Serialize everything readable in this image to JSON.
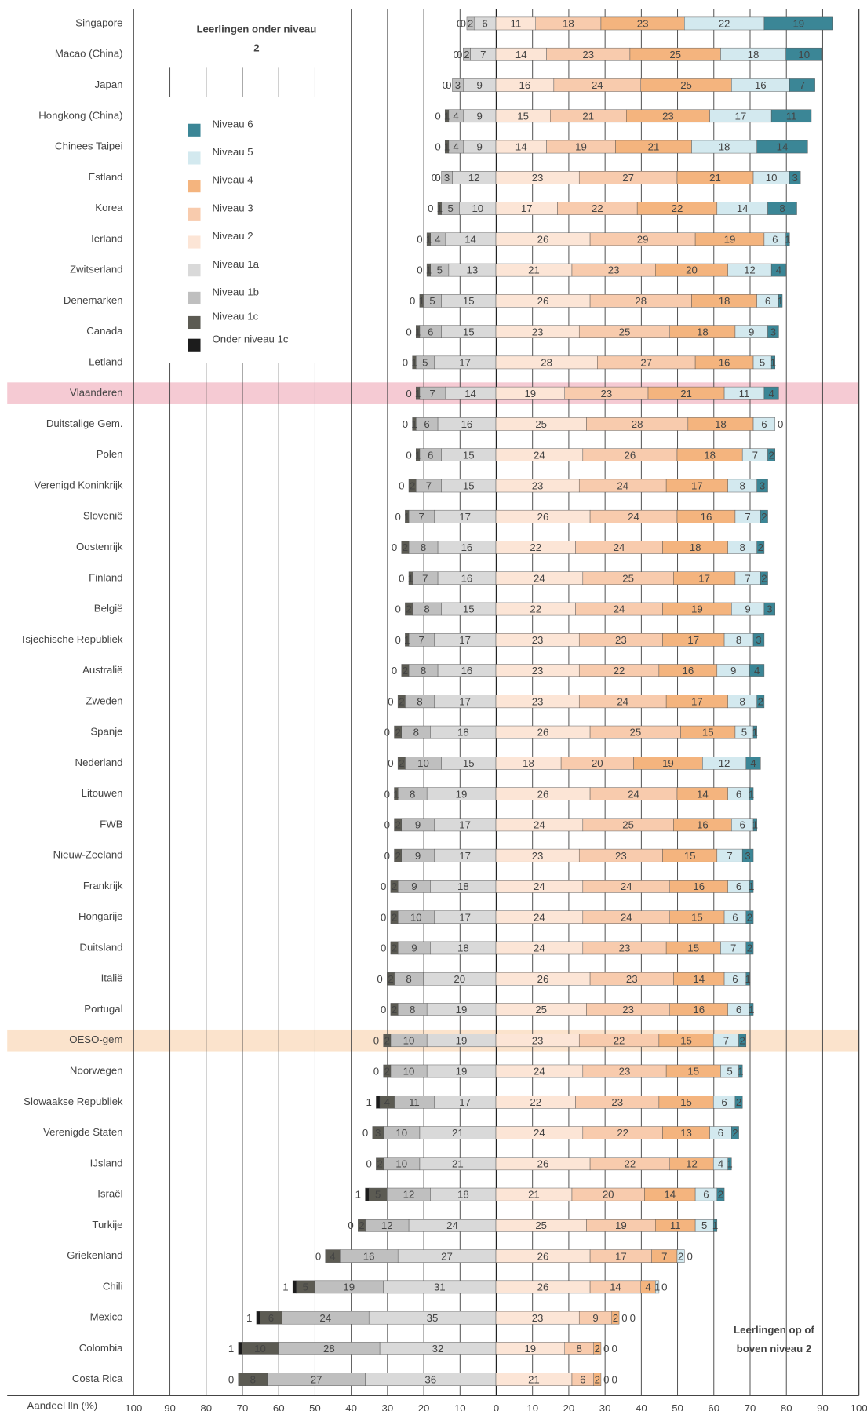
{
  "chart_data": {
    "type": "diverging_bar",
    "categories": [
      "Singapore",
      "Macao (China)",
      "Japan",
      "Hongkong (China)",
      "Chinees Taipei",
      "Estland",
      "Korea",
      "Ierland",
      "Zwitserland",
      "Denemarken",
      "Canada",
      "Letland",
      "Vlaanderen",
      "Duitstalige Gem.",
      "Polen",
      "Verenigd Koninkrijk",
      "Slovenië",
      "Oostenrijk",
      "Finland",
      "België",
      "Tsjechische Republiek",
      "Australië",
      "Zweden",
      "Spanje",
      "Nederland",
      "Litouwen",
      "FWB",
      "Nieuw-Zeeland",
      "Frankrijk",
      "Hongarije",
      "Duitsland",
      "Italië",
      "Portugal",
      "OESO-gem",
      "Noorwegen",
      "Slowaakse Republiek",
      "Verenigde Staten",
      "IJsland",
      "Israël",
      "Turkije",
      "Griekenland",
      "Chili",
      "Mexico",
      "Colombia",
      "Costa Rica"
    ],
    "series": [
      {
        "name": "Niveau 6",
        "color": "#3b8696",
        "side": "above",
        "values": [
          19,
          10,
          7,
          11,
          14,
          3,
          8,
          1,
          4,
          1,
          3,
          1,
          4,
          0,
          2,
          3,
          2,
          2,
          2,
          3,
          3,
          4,
          2,
          1,
          4,
          1,
          1,
          3,
          1,
          2,
          2,
          1,
          1,
          2,
          1,
          2,
          2,
          1,
          2,
          1,
          0,
          0,
          0,
          0,
          0
        ]
      },
      {
        "name": "Niveau 5",
        "color": "#d3e9ef",
        "side": "above",
        "values": [
          22,
          18,
          16,
          17,
          18,
          10,
          14,
          6,
          12,
          6,
          9,
          5,
          11,
          6,
          7,
          8,
          7,
          8,
          7,
          9,
          8,
          9,
          8,
          5,
          12,
          6,
          6,
          7,
          6,
          6,
          7,
          6,
          6,
          7,
          5,
          6,
          6,
          4,
          6,
          5,
          2,
          1,
          0,
          0,
          0
        ]
      },
      {
        "name": "Niveau 4",
        "color": "#f4b47e",
        "side": "above",
        "values": [
          23,
          25,
          25,
          23,
          21,
          21,
          22,
          19,
          20,
          18,
          18,
          16,
          21,
          18,
          18,
          17,
          16,
          18,
          17,
          19,
          17,
          16,
          17,
          15,
          19,
          14,
          16,
          15,
          16,
          15,
          15,
          14,
          16,
          15,
          15,
          15,
          13,
          12,
          14,
          11,
          7,
          4,
          2,
          2,
          2
        ]
      },
      {
        "name": "Niveau 3",
        "color": "#f8cbad",
        "side": "above",
        "values": [
          18,
          23,
          24,
          21,
          19,
          27,
          22,
          29,
          23,
          28,
          25,
          27,
          23,
          28,
          26,
          24,
          24,
          24,
          25,
          24,
          23,
          22,
          24,
          25,
          20,
          24,
          25,
          23,
          24,
          24,
          23,
          23,
          23,
          22,
          23,
          23,
          22,
          22,
          20,
          19,
          17,
          14,
          9,
          8,
          6
        ]
      },
      {
        "name": "Niveau 2",
        "color": "#fce5d6",
        "side": "above",
        "values": [
          11,
          14,
          16,
          15,
          14,
          23,
          17,
          26,
          21,
          26,
          23,
          28,
          19,
          25,
          24,
          23,
          26,
          22,
          24,
          22,
          23,
          23,
          23,
          26,
          18,
          26,
          24,
          23,
          24,
          24,
          24,
          26,
          25,
          23,
          24,
          22,
          24,
          26,
          21,
          25,
          26,
          26,
          23,
          19,
          21
        ]
      },
      {
        "name": "Niveau 1a",
        "color": "#d9d9d9",
        "side": "below",
        "values": [
          6,
          7,
          9,
          9,
          9,
          12,
          10,
          14,
          13,
          15,
          15,
          17,
          14,
          16,
          15,
          15,
          17,
          16,
          16,
          15,
          17,
          16,
          17,
          18,
          15,
          19,
          17,
          17,
          18,
          17,
          18,
          20,
          19,
          19,
          19,
          17,
          21,
          21,
          18,
          24,
          27,
          31,
          35,
          32,
          36
        ]
      },
      {
        "name": "Niveau 1b",
        "color": "#bfbfbf",
        "side": "below",
        "values": [
          2,
          2,
          3,
          4,
          4,
          3,
          5,
          4,
          5,
          5,
          6,
          5,
          7,
          6,
          6,
          7,
          7,
          8,
          7,
          8,
          7,
          8,
          8,
          8,
          10,
          8,
          9,
          9,
          9,
          10,
          9,
          8,
          8,
          10,
          10,
          11,
          10,
          10,
          12,
          12,
          16,
          19,
          24,
          28,
          27
        ]
      },
      {
        "name": "Niveau 1c",
        "color": "#5c5b53",
        "side": "below",
        "values": [
          0,
          0,
          0,
          1,
          1,
          0,
          1,
          1,
          1,
          1,
          1,
          1,
          1,
          1,
          1,
          2,
          1,
          2,
          1,
          2,
          1,
          2,
          2,
          2,
          2,
          1,
          2,
          2,
          2,
          2,
          2,
          2,
          2,
          2,
          2,
          4,
          3,
          2,
          5,
          2,
          4,
          5,
          6,
          10,
          8
        ]
      },
      {
        "name": "Onder niveau 1c",
        "color": "#1c1c1c",
        "side": "below",
        "values": [
          0,
          0,
          0,
          0,
          0,
          0,
          0,
          0,
          0,
          0,
          0,
          0,
          0,
          0,
          0,
          0,
          0,
          0,
          0,
          0,
          0,
          0,
          0,
          0,
          0,
          0,
          0,
          0,
          0,
          0,
          0,
          0,
          0,
          0,
          0,
          1,
          0,
          0,
          1,
          0,
          0,
          1,
          1,
          1,
          0
        ]
      }
    ],
    "xlim": [
      -100,
      100
    ],
    "xticks": [
      {
        "value": -100,
        "label": "100"
      },
      {
        "value": -90,
        "label": "90"
      },
      {
        "value": -80,
        "label": "80"
      },
      {
        "value": -70,
        "label": "70"
      },
      {
        "value": -60,
        "label": "60"
      },
      {
        "value": -50,
        "label": "50"
      },
      {
        "value": -40,
        "label": "40"
      },
      {
        "value": -30,
        "label": "30"
      },
      {
        "value": -20,
        "label": "20"
      },
      {
        "value": -10,
        "label": "10"
      },
      0,
      10,
      20,
      30,
      40,
      50,
      60,
      70,
      80,
      90,
      100
    ],
    "x_label": "Aandeel lln (%)",
    "annotation_below": [
      "Leerlingen onder niveau",
      "2"
    ],
    "annotation_above": [
      "Leerlingen op of",
      "boven niveau 2"
    ],
    "grid": true,
    "legend": "upper left",
    "highlights": [
      {
        "category": "Vlaanderen",
        "color": "#f5cad3"
      },
      {
        "category": "OESO-gem",
        "color": "#fbe3cc"
      }
    ]
  }
}
